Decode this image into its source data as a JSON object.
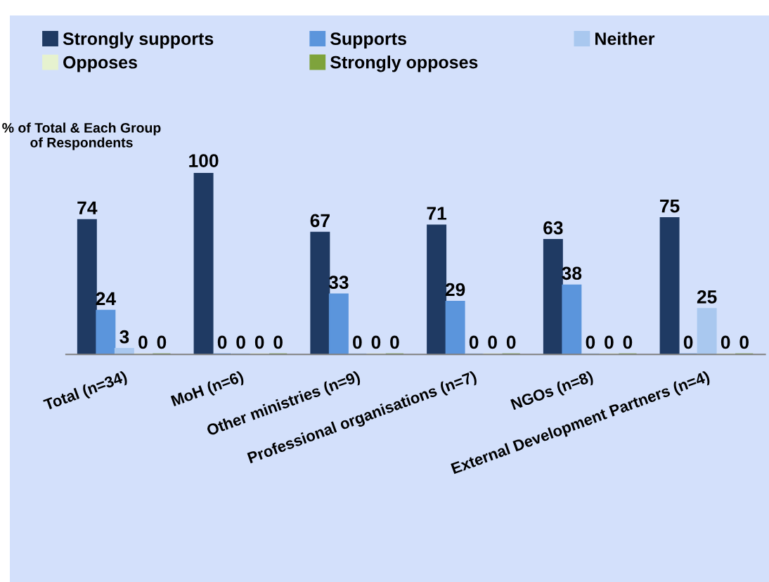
{
  "chart_data": {
    "type": "bar",
    "ylabel": "% of Total & Each Group of Respondents",
    "categories": [
      "Total (n=34)",
      "MoH (n=6)",
      "Other ministries (n=9)",
      "Professional organisations (n=7)",
      "NGOs (n=8)",
      "External Development Partners (n=4)"
    ],
    "series": [
      {
        "name": "Strongly supports",
        "color": "#1f3a63",
        "values": [
          74,
          100,
          67,
          71,
          63,
          75
        ]
      },
      {
        "name": "Supports",
        "color": "#5b95dc",
        "values": [
          24,
          0,
          33,
          29,
          38,
          0
        ]
      },
      {
        "name": "Neither",
        "color": "#a9c8ef",
        "values": [
          3,
          0,
          0,
          0,
          0,
          25
        ]
      },
      {
        "name": "Opposes",
        "color": "#e6f2cf",
        "values": [
          0,
          0,
          0,
          0,
          0,
          0
        ]
      },
      {
        "name": "Strongly opposes",
        "color": "#7ea33c",
        "values": [
          0,
          0,
          0,
          0,
          0,
          0
        ]
      }
    ],
    "data_labels": true,
    "legend": "top",
    "grid": false
  }
}
